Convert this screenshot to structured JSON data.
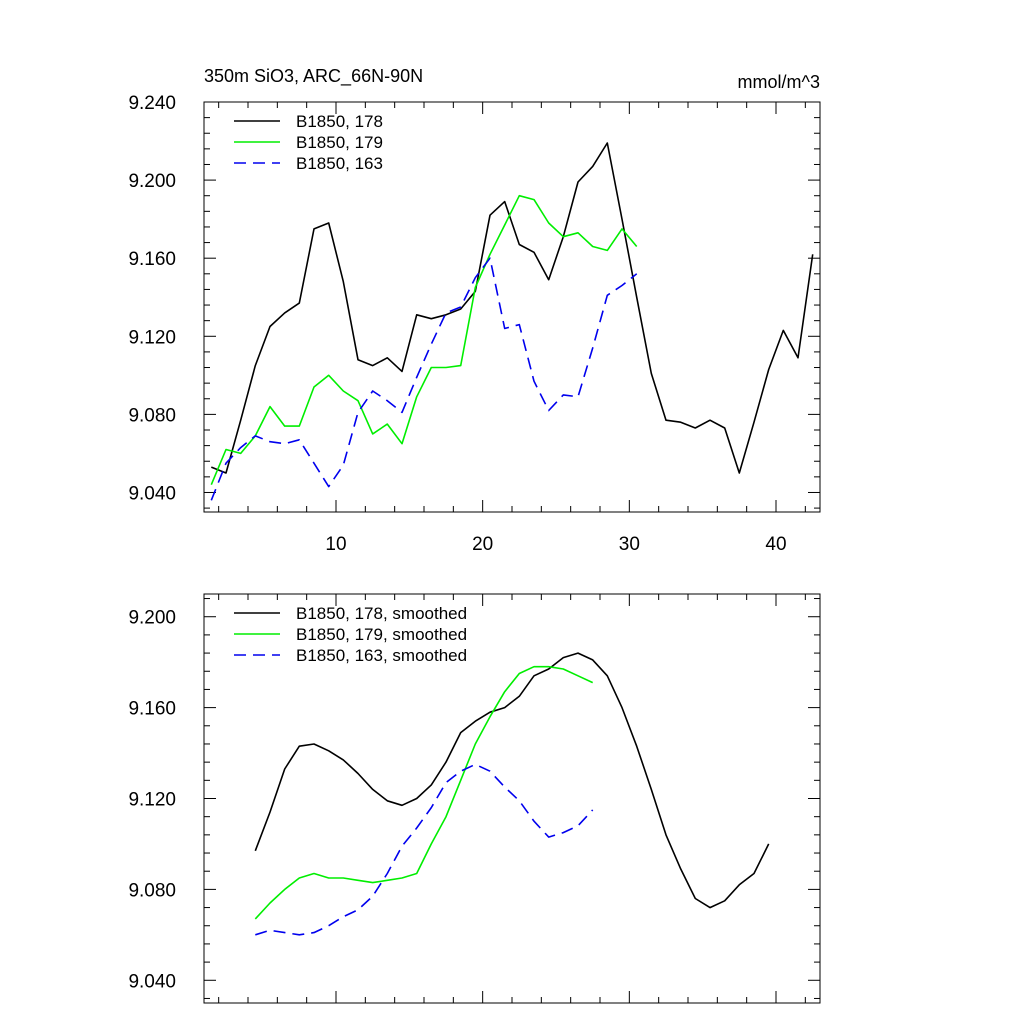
{
  "chart_data": [
    {
      "type": "line",
      "title": "350m SiO3, ARC_66N-90N",
      "units": "mmol/m^3",
      "xlabel": "",
      "ylabel": "",
      "xlim": [
        1,
        43
      ],
      "ylim": [
        9.03,
        9.24
      ],
      "yticks": [
        9.04,
        9.08,
        9.12,
        9.16,
        9.2,
        9.24
      ],
      "ytick_labels": [
        "9.040",
        "9.080",
        "9.120",
        "9.160",
        "9.200",
        "9.240"
      ],
      "xticks": [
        10,
        20,
        30,
        40
      ],
      "xtick_labels": [
        "10",
        "20",
        "30",
        "40"
      ],
      "legend_position": "top-left",
      "series": [
        {
          "name": "B1850, 178",
          "color": "#000000",
          "dash": "solid",
          "x": [
            1.5,
            2.5,
            3.5,
            4.5,
            5.5,
            6.5,
            7.5,
            8.5,
            9.5,
            10.5,
            11.5,
            12.5,
            13.5,
            14.5,
            15.5,
            16.5,
            17.5,
            18.5,
            19.5,
            20.5,
            21.5,
            22.5,
            23.5,
            24.5,
            25.5,
            26.5,
            27.5,
            28.5,
            29.5,
            30.5,
            31.5,
            32.5,
            33.5,
            34.5,
            35.5,
            36.5,
            37.5,
            38.5,
            39.5,
            40.5,
            41.5,
            42.5
          ],
          "values": [
            9.053,
            9.05,
            9.077,
            9.105,
            9.125,
            9.132,
            9.137,
            9.175,
            9.178,
            9.148,
            9.108,
            9.105,
            9.109,
            9.102,
            9.131,
            9.129,
            9.131,
            9.134,
            9.143,
            9.182,
            9.189,
            9.167,
            9.163,
            9.149,
            9.171,
            9.199,
            9.207,
            9.219,
            9.18,
            9.14,
            9.101,
            9.077,
            9.076,
            9.073,
            9.077,
            9.073,
            9.05,
            9.076,
            9.103,
            9.123,
            9.109,
            9.162
          ]
        },
        {
          "name": "B1850, 179",
          "color": "#00ee00",
          "dash": "solid",
          "x": [
            1.5,
            2.5,
            3.5,
            4.5,
            5.5,
            6.5,
            7.5,
            8.5,
            9.5,
            10.5,
            11.5,
            12.5,
            13.5,
            14.5,
            15.5,
            16.5,
            17.5,
            18.5,
            19.5,
            20.5,
            21.5,
            22.5,
            23.5,
            24.5,
            25.5,
            26.5,
            27.5,
            28.5,
            29.5,
            30.5
          ],
          "values": [
            9.044,
            9.062,
            9.06,
            9.069,
            9.084,
            9.074,
            9.074,
            9.094,
            9.1,
            9.092,
            9.087,
            9.07,
            9.075,
            9.065,
            9.089,
            9.104,
            9.104,
            9.105,
            9.145,
            9.162,
            9.177,
            9.192,
            9.19,
            9.178,
            9.171,
            9.173,
            9.166,
            9.164,
            9.175,
            9.166
          ]
        },
        {
          "name": "B1850, 163",
          "color": "#0000ee",
          "dash": "dashed",
          "x": [
            1.5,
            2.5,
            3.5,
            4.5,
            5.5,
            6.5,
            7.5,
            8.5,
            9.5,
            10.5,
            11.5,
            12.5,
            13.5,
            14.5,
            15.5,
            16.5,
            17.5,
            18.5,
            19.5,
            20.5,
            21.5,
            22.5,
            23.5,
            24.5,
            25.5,
            26.5,
            27.5,
            28.5,
            29.5,
            30.5
          ],
          "values": [
            9.036,
            9.055,
            9.063,
            9.069,
            9.066,
            9.065,
            9.067,
            9.055,
            9.043,
            9.054,
            9.081,
            9.092,
            9.087,
            9.081,
            9.099,
            9.116,
            9.132,
            9.135,
            9.15,
            9.16,
            9.124,
            9.126,
            9.097,
            9.082,
            9.09,
            9.089,
            9.114,
            9.141,
            9.146,
            9.152
          ]
        }
      ]
    },
    {
      "type": "line",
      "title": "",
      "xlabel": "",
      "ylabel": "",
      "xlim": [
        1,
        43
      ],
      "ylim": [
        9.03,
        9.21
      ],
      "yticks": [
        9.04,
        9.08,
        9.12,
        9.16,
        9.2
      ],
      "ytick_labels": [
        "9.040",
        "9.080",
        "9.120",
        "9.160",
        "9.200"
      ],
      "xticks": [
        10,
        20,
        30,
        40
      ],
      "legend_position": "top-left",
      "series": [
        {
          "name": "B1850, 178, smoothed",
          "color": "#000000",
          "dash": "solid",
          "x": [
            4.5,
            5.5,
            6.5,
            7.5,
            8.5,
            9.5,
            10.5,
            11.5,
            12.5,
            13.5,
            14.5,
            15.5,
            16.5,
            17.5,
            18.5,
            19.5,
            20.5,
            21.5,
            22.5,
            23.5,
            24.5,
            25.5,
            26.5,
            27.5,
            28.5,
            29.5,
            30.5,
            31.5,
            32.5,
            33.5,
            34.5,
            35.5,
            36.5,
            37.5,
            38.5,
            39.5
          ],
          "values": [
            9.097,
            9.114,
            9.133,
            9.143,
            9.144,
            9.141,
            9.137,
            9.131,
            9.124,
            9.119,
            9.117,
            9.12,
            9.126,
            9.136,
            9.149,
            9.154,
            9.158,
            9.16,
            9.165,
            9.174,
            9.177,
            9.182,
            9.184,
            9.181,
            9.174,
            9.16,
            9.143,
            9.124,
            9.104,
            9.089,
            9.076,
            9.072,
            9.075,
            9.082,
            9.087,
            9.1
          ]
        },
        {
          "name": "B1850, 179, smoothed",
          "color": "#00ee00",
          "dash": "solid",
          "x": [
            4.5,
            5.5,
            6.5,
            7.5,
            8.5,
            9.5,
            10.5,
            11.5,
            12.5,
            13.5,
            14.5,
            15.5,
            16.5,
            17.5,
            18.5,
            19.5,
            20.5,
            21.5,
            22.5,
            23.5,
            24.5,
            25.5,
            26.5,
            27.5
          ],
          "values": [
            9.067,
            9.074,
            9.08,
            9.085,
            9.087,
            9.085,
            9.085,
            9.084,
            9.083,
            9.084,
            9.085,
            9.087,
            9.1,
            9.112,
            9.128,
            9.144,
            9.156,
            9.167,
            9.175,
            9.178,
            9.178,
            9.177,
            9.174,
            9.171
          ]
        },
        {
          "name": "B1850, 163, smoothed",
          "color": "#0000ee",
          "dash": "dashed",
          "x": [
            4.5,
            5.5,
            6.5,
            7.5,
            8.5,
            9.5,
            10.5,
            11.5,
            12.5,
            13.5,
            14.5,
            15.5,
            16.5,
            17.5,
            18.5,
            19.5,
            20.5,
            21.5,
            22.5,
            23.5,
            24.5,
            25.5,
            26.5,
            27.5
          ],
          "values": [
            9.06,
            9.062,
            9.061,
            9.06,
            9.061,
            9.064,
            9.068,
            9.071,
            9.077,
            9.087,
            9.099,
            9.107,
            9.116,
            9.127,
            9.132,
            9.135,
            9.132,
            9.125,
            9.119,
            9.11,
            9.103,
            9.105,
            9.108,
            9.115
          ]
        }
      ]
    }
  ]
}
